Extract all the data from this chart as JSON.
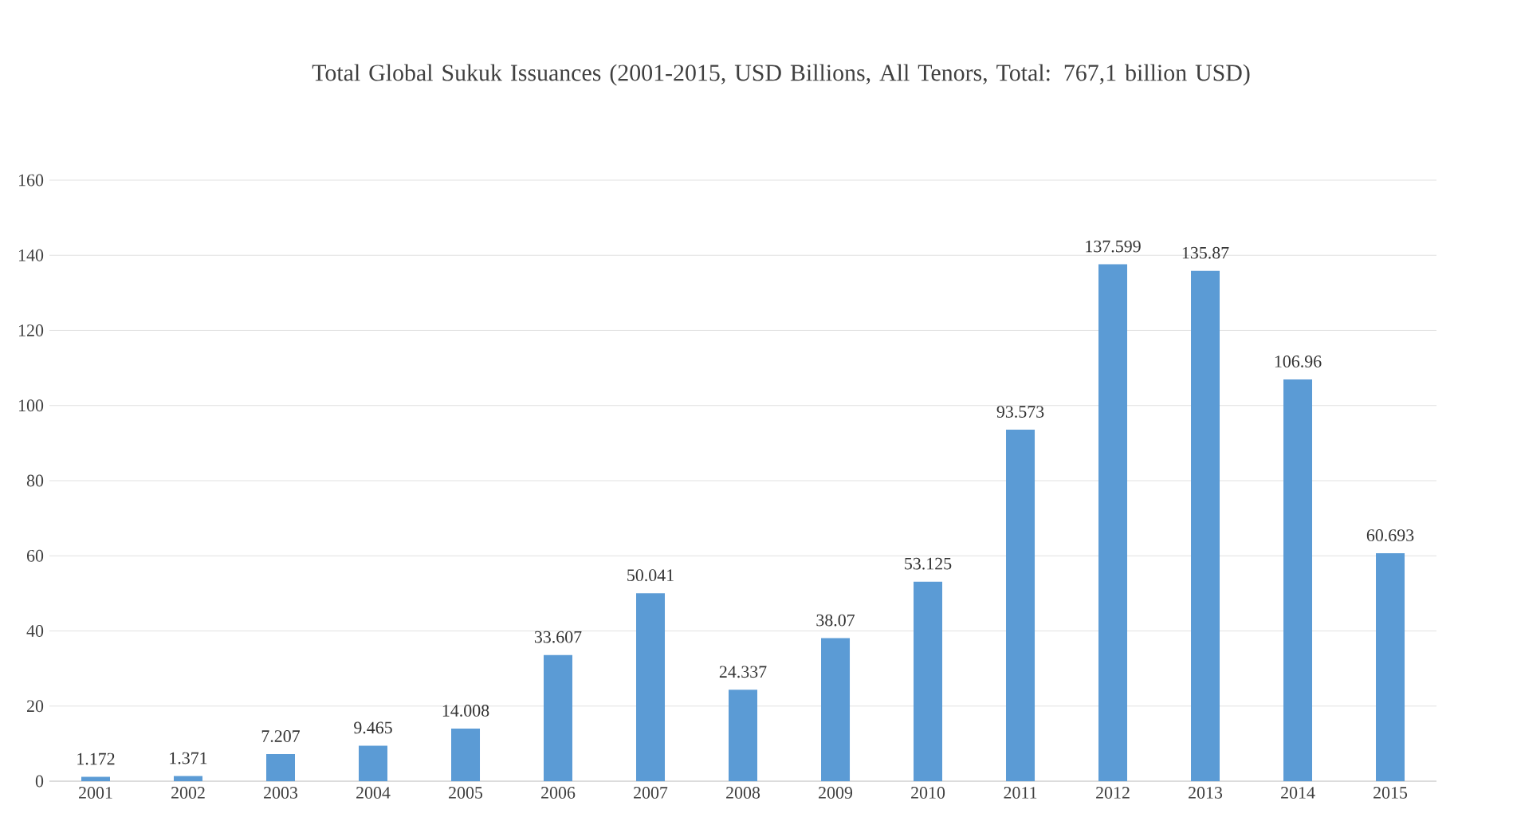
{
  "chart_data": {
    "type": "bar",
    "title": "Total Global Sukuk Issuances (2001-2015, USD Billions, All Tenors, Total: 767,1 billion USD)",
    "categories": [
      "2001",
      "2002",
      "2003",
      "2004",
      "2005",
      "2006",
      "2007",
      "2008",
      "2009",
      "2010",
      "2011",
      "2012",
      "2013",
      "2014",
      "2015"
    ],
    "values": [
      1.172,
      1.371,
      7.207,
      9.465,
      14.008,
      33.607,
      50.041,
      24.337,
      38.07,
      53.125,
      93.573,
      137.599,
      135.87,
      106.96,
      60.693
    ],
    "value_labels": [
      "1.172",
      "1.371",
      "7.207",
      "9.465",
      "14.008",
      "33.607",
      "50.041",
      "24.337",
      "38.07",
      "53.125",
      "93.573",
      "137.599",
      "135.87",
      "106.96",
      "60.693"
    ],
    "color": "#5b9bd5",
    "ylim": [
      0,
      160
    ],
    "yticks": [
      0,
      20,
      40,
      60,
      80,
      100,
      120,
      140,
      160
    ],
    "grid": "y"
  }
}
